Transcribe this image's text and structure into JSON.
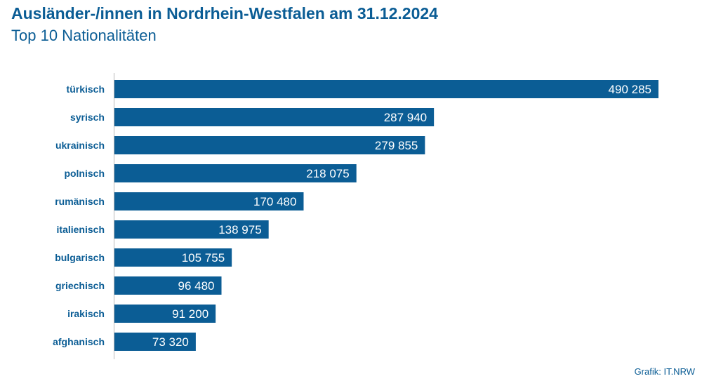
{
  "header": {
    "title": "Ausländer-/innen in Nordrhein-Westfalen am 31.12.2024",
    "subtitle": "Top 10 Nationalitäten"
  },
  "source": "Grafik: IT.NRW",
  "colors": {
    "bar": "#0b5d95",
    "text": "#0b5d95",
    "value_label": "#ffffff",
    "axis": "#b9b9b9"
  },
  "chart_data": {
    "type": "bar",
    "orientation": "horizontal",
    "title": "Ausländer-/innen in Nordrhein-Westfalen am 31.12.2024",
    "subtitle": "Top 10 Nationalitäten",
    "categories": [
      "türkisch",
      "syrisch",
      "ukrainisch",
      "polnisch",
      "rumänisch",
      "italienisch",
      "bulgarisch",
      "griechisch",
      "irakisch",
      "afghanisch"
    ],
    "values": [
      490285,
      287940,
      279855,
      218075,
      170480,
      138975,
      105755,
      96480,
      91200,
      73320
    ],
    "value_labels": [
      "490 285",
      "287 940",
      "279 855",
      "218 075",
      "170 480",
      "138 975",
      "105 755",
      "96 480",
      "91 200",
      "73 320"
    ],
    "xlim": [
      0,
      490285
    ],
    "grid": false,
    "legend": "none"
  }
}
